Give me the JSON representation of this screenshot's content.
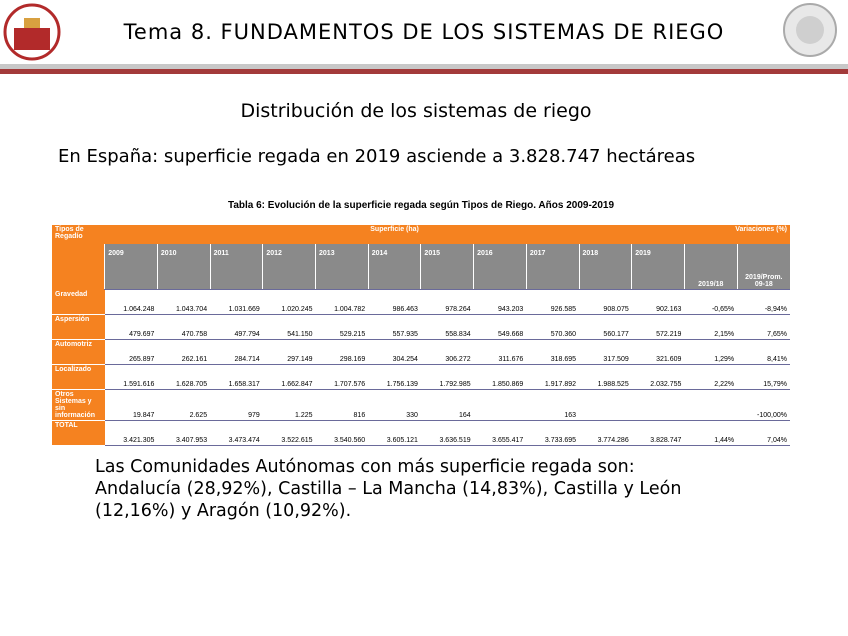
{
  "header": {
    "title": "Tema 8. FUNDAMENTOS DE LOS SISTEMAS DE RIEGO"
  },
  "subtitle": "Distribución de los sistemas de riego",
  "intro": "En España: superficie regada en 2019 asciende a 3.828.747 hectáreas",
  "table": {
    "caption": "Tabla 6: Evolución de la superficie regada según Tipos de Riego. Años 2009-2019",
    "group_headers": [
      "Tipos de Regadío",
      "Superficie (ha)",
      "Variaciones (%)"
    ],
    "columns": [
      "2009",
      "2010",
      "2011",
      "2012",
      "2013",
      "2014",
      "2015",
      "2016",
      "2017",
      "2018",
      "2019",
      "2019/18",
      "2019/Prom. 09-18"
    ],
    "rows": [
      [
        "Gravedad",
        "1.064.248",
        "1.043.704",
        "1.031.669",
        "1.020.245",
        "1.004.782",
        "986.463",
        "978.264",
        "943.203",
        "926.585",
        "908.075",
        "902.163",
        "-0,65%",
        "-8,94%"
      ],
      [
        "Aspersión",
        "479.697",
        "470.758",
        "497.794",
        "541.150",
        "529.215",
        "557.935",
        "558.834",
        "549.668",
        "570.360",
        "560.177",
        "572.219",
        "2,15%",
        "7,65%"
      ],
      [
        "Automotriz",
        "265.897",
        "262.161",
        "284.714",
        "297.149",
        "298.169",
        "304.254",
        "306.272",
        "311.676",
        "318.695",
        "317.509",
        "321.609",
        "1,29%",
        "8,41%"
      ],
      [
        "Localizado",
        "1.591.616",
        "1.628.705",
        "1.658.317",
        "1.662.847",
        "1.707.576",
        "1.756.139",
        "1.792.985",
        "1.850.869",
        "1.917.892",
        "1.988.525",
        "2.032.755",
        "2,22%",
        "15,79%"
      ],
      [
        "Otros Sistemas y sin información",
        "19.847",
        "2.625",
        "979",
        "1.225",
        "816",
        "330",
        "164",
        null,
        "163",
        null,
        null,
        null,
        "-100,00%"
      ],
      [
        "TOTAL",
        "3.421.305",
        "3.407.953",
        "3.473.474",
        "3.522.615",
        "3.540.560",
        "3.605.121",
        "3.636.519",
        "3.655.417",
        "3.733.695",
        "3.774.286",
        "3.828.747",
        "1,44%",
        "7,04%"
      ]
    ]
  },
  "paragraph": [
    "Las Comunidades Autónomas con más superficie regada son:",
    "Andalucía (28,92%), Castilla – La Mancha (14,83%), Castilla y León",
    "(12,16%) y Aragón (10,92%)."
  ]
}
